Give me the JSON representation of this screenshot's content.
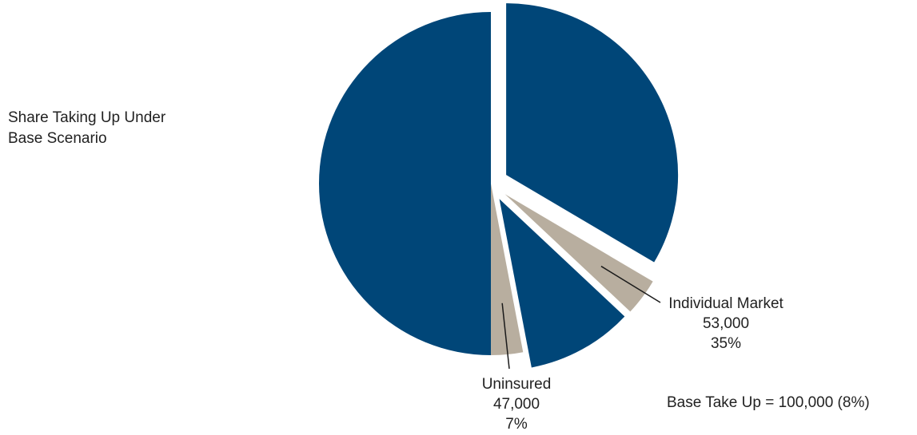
{
  "chart_data": {
    "type": "pie",
    "title": "Share Taking Up Under Base Scenario",
    "title_lines": [
      "Share Taking Up Under",
      "Base Scenario"
    ],
    "note": "Base Take Up = 100,000 (8%)",
    "segments": [
      {
        "share": 0.335,
        "color": "#004678",
        "exploded": true
      },
      {
        "share": 0.035,
        "color": "#b8ae9f",
        "exploded": true
      },
      {
        "share": 0.1,
        "color": "#004678",
        "exploded": true
      },
      {
        "share": 0.03,
        "color": "#b8ae9f",
        "exploded": false
      },
      {
        "share": 0.5,
        "color": "#004678",
        "exploded": false
      }
    ],
    "annotations": [
      {
        "label": "Individual Market",
        "value": "53,000",
        "percent": "35%",
        "segment": 1
      },
      {
        "label": "Uninsured",
        "value": "47,000",
        "percent": "7%",
        "segment": 3
      }
    ],
    "colors": {
      "navy": "#004678",
      "tan": "#b8ae9f",
      "leader": "#1a1a1a"
    }
  }
}
